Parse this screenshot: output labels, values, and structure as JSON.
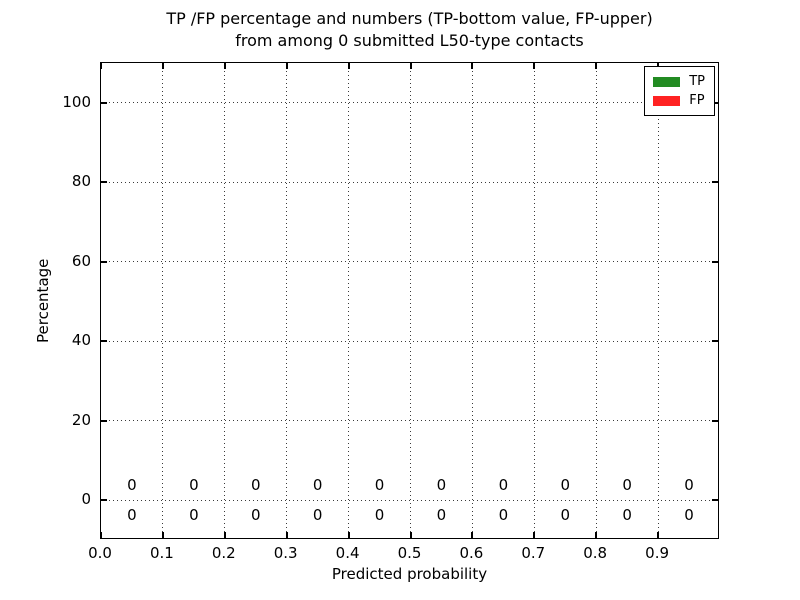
{
  "chart": {
    "title_line1": "TP /FP percentage and numbers (TP-bottom value, FP-upper)",
    "title_line2": "from among 0 submitted L50-type contacts",
    "ylabel": "Percentage",
    "xlabel": "Predicted probability"
  },
  "chart_data": {
    "type": "bar",
    "title": "TP /FP percentage and numbers (TP-bottom value, FP-upper) from among 0 submitted L50-type contacts",
    "xlabel": "Predicted probability",
    "ylabel": "Percentage",
    "xlim": [
      0.0,
      1.0
    ],
    "ylim": [
      -10,
      110
    ],
    "x_ticks": [
      "0.0",
      "0.1",
      "0.2",
      "0.3",
      "0.4",
      "0.5",
      "0.6",
      "0.7",
      "0.8",
      "0.9"
    ],
    "y_ticks": [
      0,
      20,
      40,
      60,
      80,
      100
    ],
    "grid": "dotted",
    "legend_position": "upper right",
    "bin_centers": [
      0.05,
      0.15,
      0.25,
      0.35,
      0.45,
      0.55,
      0.65,
      0.75,
      0.85,
      0.95
    ],
    "series": [
      {
        "name": "TP",
        "color": "#228b22",
        "values": [
          0,
          0,
          0,
          0,
          0,
          0,
          0,
          0,
          0,
          0
        ],
        "counts": [
          0,
          0,
          0,
          0,
          0,
          0,
          0,
          0,
          0,
          0
        ],
        "count_label_row": "below zero line"
      },
      {
        "name": "FP",
        "color": "#ff2222",
        "values": [
          0,
          0,
          0,
          0,
          0,
          0,
          0,
          0,
          0,
          0
        ],
        "counts": [
          0,
          0,
          0,
          0,
          0,
          0,
          0,
          0,
          0,
          0
        ],
        "count_label_row": "above zero line"
      }
    ]
  }
}
